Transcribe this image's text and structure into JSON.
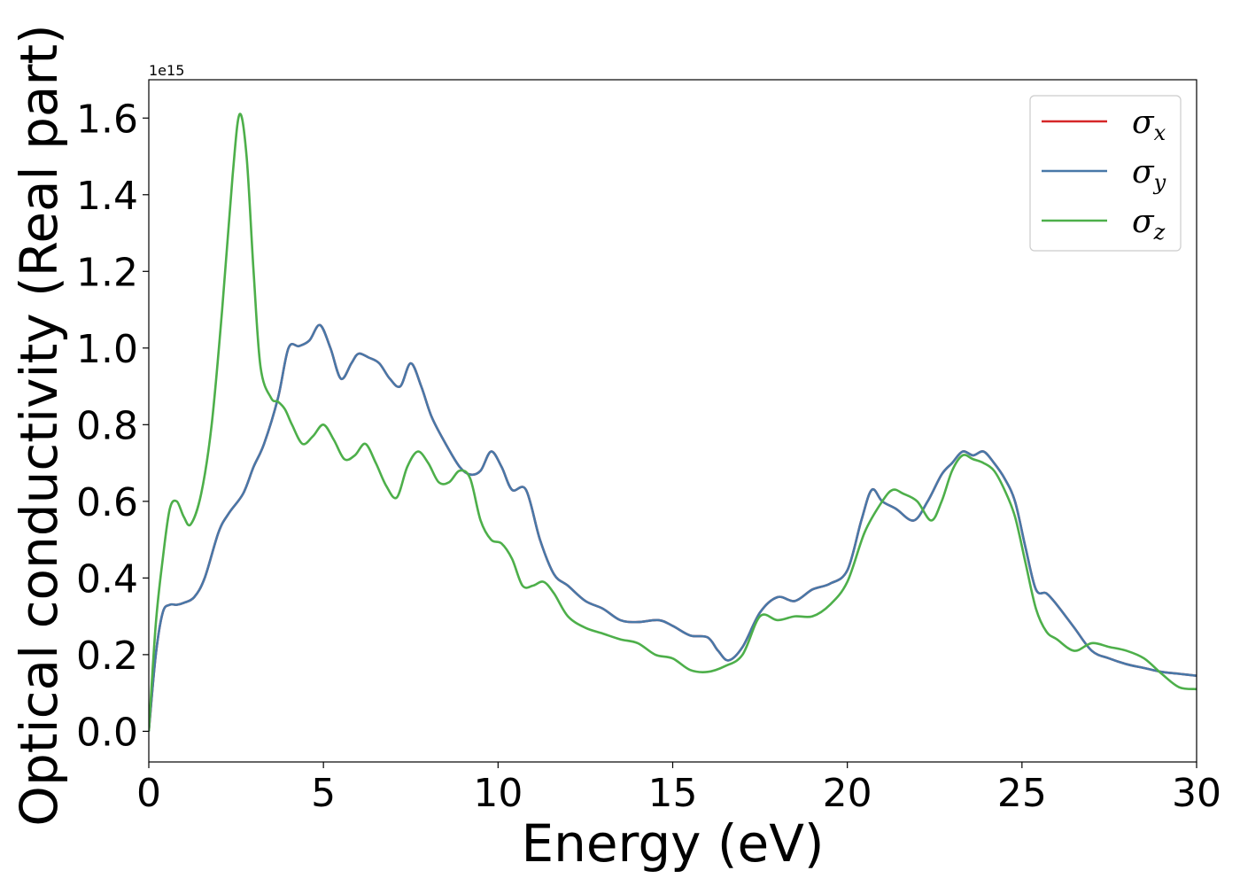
{
  "chart_data": {
    "type": "line",
    "title": "",
    "xlabel": "Energy (eV)",
    "ylabel": "Optical conductivity (Real part)",
    "y_offset_label": "1e15",
    "xlim": [
      0,
      30
    ],
    "ylim": [
      -0.08,
      1.7
    ],
    "xticks": [
      0,
      5,
      10,
      15,
      20,
      25,
      30
    ],
    "xtick_labels": [
      "0",
      "5",
      "10",
      "15",
      "20",
      "25",
      "30"
    ],
    "yticks": [
      0.0,
      0.2,
      0.4,
      0.6,
      0.8,
      1.0,
      1.2,
      1.4,
      1.6
    ],
    "ytick_labels": [
      "0.0",
      "0.2",
      "0.4",
      "0.6",
      "0.8",
      "1.0",
      "1.2",
      "1.4",
      "1.6"
    ],
    "grid": false,
    "legend_position": "top-right",
    "series": [
      {
        "name": "σx",
        "legend_symbol": "σ",
        "legend_subscript": "x",
        "color": "#d62728",
        "x": [
          0,
          0.2,
          0.4,
          0.6,
          0.8,
          1.0,
          1.3,
          1.6,
          2.0,
          2.3,
          2.7,
          3.0,
          3.3,
          3.7,
          4.0,
          4.3,
          4.6,
          4.9,
          5.2,
          5.5,
          5.8,
          6.0,
          6.3,
          6.6,
          6.9,
          7.2,
          7.5,
          7.8,
          8.1,
          8.5,
          8.9,
          9.2,
          9.5,
          9.8,
          10.1,
          10.4,
          10.8,
          11.2,
          11.6,
          12.0,
          12.5,
          13.0,
          13.5,
          14.0,
          14.6,
          15.0,
          15.5,
          16.0,
          16.3,
          16.6,
          17.0,
          17.5,
          18.0,
          18.5,
          19.0,
          19.5,
          20.0,
          20.4,
          20.7,
          21.0,
          21.4,
          21.9,
          22.3,
          22.7,
          23.0,
          23.3,
          23.6,
          23.9,
          24.2,
          24.5,
          24.8,
          25.1,
          25.4,
          25.7,
          26.0,
          26.5,
          27.0,
          27.5,
          28.0,
          28.5,
          29.0,
          29.5,
          30.0
        ],
        "y": [
          0.0,
          0.2,
          0.31,
          0.33,
          0.33,
          0.335,
          0.35,
          0.4,
          0.52,
          0.57,
          0.62,
          0.69,
          0.75,
          0.87,
          1.0,
          1.005,
          1.02,
          1.06,
          1.0,
          0.92,
          0.96,
          0.985,
          0.975,
          0.96,
          0.92,
          0.9,
          0.96,
          0.9,
          0.82,
          0.75,
          0.69,
          0.67,
          0.68,
          0.73,
          0.69,
          0.63,
          0.63,
          0.5,
          0.41,
          0.38,
          0.34,
          0.32,
          0.29,
          0.285,
          0.29,
          0.275,
          0.25,
          0.245,
          0.21,
          0.185,
          0.22,
          0.31,
          0.35,
          0.34,
          0.37,
          0.385,
          0.42,
          0.55,
          0.63,
          0.6,
          0.58,
          0.55,
          0.6,
          0.67,
          0.7,
          0.73,
          0.72,
          0.73,
          0.7,
          0.66,
          0.6,
          0.48,
          0.37,
          0.36,
          0.33,
          0.27,
          0.21,
          0.19,
          0.175,
          0.165,
          0.155,
          0.15,
          0.145
        ]
      },
      {
        "name": "σy",
        "legend_symbol": "σ",
        "legend_subscript": "y",
        "color": "#4878a8",
        "x": [
          0,
          0.2,
          0.4,
          0.6,
          0.8,
          1.0,
          1.3,
          1.6,
          2.0,
          2.3,
          2.7,
          3.0,
          3.3,
          3.7,
          4.0,
          4.3,
          4.6,
          4.9,
          5.2,
          5.5,
          5.8,
          6.0,
          6.3,
          6.6,
          6.9,
          7.2,
          7.5,
          7.8,
          8.1,
          8.5,
          8.9,
          9.2,
          9.5,
          9.8,
          10.1,
          10.4,
          10.8,
          11.2,
          11.6,
          12.0,
          12.5,
          13.0,
          13.5,
          14.0,
          14.6,
          15.0,
          15.5,
          16.0,
          16.3,
          16.6,
          17.0,
          17.5,
          18.0,
          18.5,
          19.0,
          19.5,
          20.0,
          20.4,
          20.7,
          21.0,
          21.4,
          21.9,
          22.3,
          22.7,
          23.0,
          23.3,
          23.6,
          23.9,
          24.2,
          24.5,
          24.8,
          25.1,
          25.4,
          25.7,
          26.0,
          26.5,
          27.0,
          27.5,
          28.0,
          28.5,
          29.0,
          29.5,
          30.0
        ],
        "y": [
          0.0,
          0.2,
          0.31,
          0.33,
          0.33,
          0.335,
          0.35,
          0.4,
          0.52,
          0.57,
          0.62,
          0.69,
          0.75,
          0.87,
          1.0,
          1.005,
          1.02,
          1.06,
          1.0,
          0.92,
          0.96,
          0.985,
          0.975,
          0.96,
          0.92,
          0.9,
          0.96,
          0.9,
          0.82,
          0.75,
          0.69,
          0.67,
          0.68,
          0.73,
          0.69,
          0.63,
          0.63,
          0.5,
          0.41,
          0.38,
          0.34,
          0.32,
          0.29,
          0.285,
          0.29,
          0.275,
          0.25,
          0.245,
          0.21,
          0.185,
          0.22,
          0.31,
          0.35,
          0.34,
          0.37,
          0.385,
          0.42,
          0.55,
          0.63,
          0.6,
          0.58,
          0.55,
          0.6,
          0.67,
          0.7,
          0.73,
          0.72,
          0.73,
          0.7,
          0.66,
          0.6,
          0.48,
          0.37,
          0.36,
          0.33,
          0.27,
          0.21,
          0.19,
          0.175,
          0.165,
          0.155,
          0.15,
          0.145
        ]
      },
      {
        "name": "σz",
        "legend_symbol": "σ",
        "legend_subscript": "z",
        "color": "#4daf4a",
        "x": [
          0,
          0.2,
          0.4,
          0.6,
          0.8,
          1.0,
          1.2,
          1.5,
          1.8,
          2.1,
          2.4,
          2.6,
          2.8,
          3.0,
          3.2,
          3.5,
          3.7,
          3.9,
          4.1,
          4.4,
          4.7,
          5.0,
          5.3,
          5.6,
          5.9,
          6.2,
          6.5,
          6.8,
          7.1,
          7.4,
          7.7,
          8.0,
          8.3,
          8.6,
          8.9,
          9.2,
          9.5,
          9.8,
          10.1,
          10.4,
          10.7,
          11.0,
          11.3,
          11.6,
          12.0,
          12.5,
          13.0,
          13.5,
          14.0,
          14.5,
          15.0,
          15.5,
          16.0,
          16.5,
          17.0,
          17.5,
          18.0,
          18.5,
          19.0,
          19.5,
          20.0,
          20.5,
          21.0,
          21.3,
          21.6,
          22.0,
          22.4,
          22.7,
          23.0,
          23.3,
          23.6,
          23.9,
          24.2,
          24.5,
          24.8,
          25.1,
          25.4,
          25.7,
          26.0,
          26.5,
          27.0,
          27.5,
          28.0,
          28.5,
          29.0,
          29.5,
          30.0
        ],
        "y": [
          0.0,
          0.28,
          0.45,
          0.58,
          0.6,
          0.56,
          0.54,
          0.62,
          0.8,
          1.1,
          1.45,
          1.61,
          1.5,
          1.2,
          0.95,
          0.87,
          0.86,
          0.84,
          0.8,
          0.75,
          0.77,
          0.8,
          0.76,
          0.71,
          0.72,
          0.75,
          0.7,
          0.64,
          0.61,
          0.69,
          0.73,
          0.7,
          0.65,
          0.65,
          0.68,
          0.66,
          0.55,
          0.5,
          0.49,
          0.45,
          0.38,
          0.38,
          0.39,
          0.36,
          0.3,
          0.27,
          0.255,
          0.24,
          0.23,
          0.2,
          0.19,
          0.16,
          0.155,
          0.17,
          0.2,
          0.3,
          0.29,
          0.3,
          0.3,
          0.33,
          0.39,
          0.52,
          0.6,
          0.63,
          0.62,
          0.6,
          0.55,
          0.6,
          0.68,
          0.72,
          0.71,
          0.7,
          0.68,
          0.63,
          0.56,
          0.44,
          0.32,
          0.26,
          0.24,
          0.21,
          0.23,
          0.22,
          0.21,
          0.19,
          0.15,
          0.115,
          0.11
        ]
      }
    ]
  }
}
